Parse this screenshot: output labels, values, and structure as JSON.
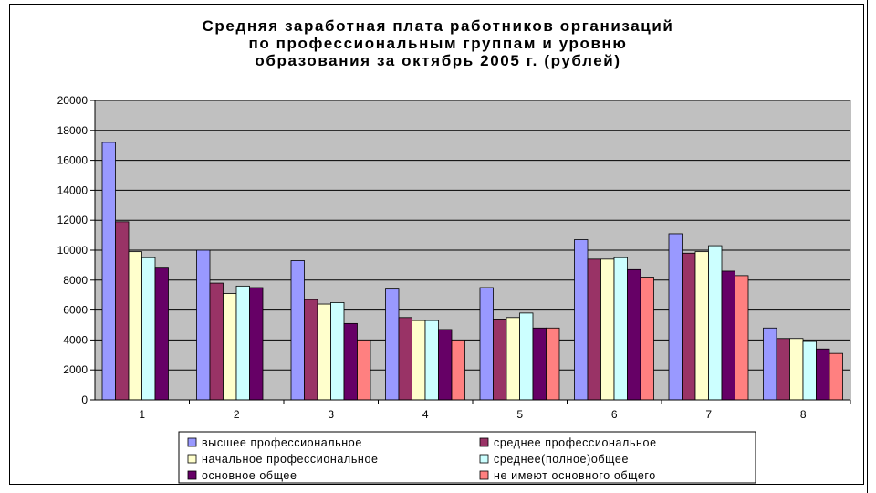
{
  "chart_data": {
    "type": "bar",
    "title_lines": [
      "Средняя заработная плата работников организаций",
      "по профессиональным группам и уровню",
      "образования за октябрь 2005 г. (рублей)"
    ],
    "categories": [
      "1",
      "2",
      "3",
      "4",
      "5",
      "6",
      "7",
      "8"
    ],
    "ylim": [
      0,
      20000
    ],
    "yticks": [
      "0",
      "2000",
      "4000",
      "6000",
      "8000",
      "10000",
      "12000",
      "14000",
      "16000",
      "18000",
      "20000"
    ],
    "grid": true,
    "legend_position": "bottom",
    "plot_background": "#c0c0c0",
    "series": [
      {
        "name": "высшее профессиональное",
        "color": "#9999ff",
        "values": [
          17200,
          10000,
          9300,
          7400,
          7500,
          10700,
          11100,
          4800
        ]
      },
      {
        "name": "среднее профессиональное",
        "color": "#993366",
        "values": [
          11900,
          7800,
          6700,
          5500,
          5400,
          9400,
          9800,
          4100
        ]
      },
      {
        "name": "начальное профессиональное",
        "color": "#ffffcc",
        "values": [
          9900,
          7100,
          6400,
          5300,
          5500,
          9400,
          9900,
          4100
        ]
      },
      {
        "name": "среднее(полное)общее",
        "color": "#ccffff",
        "values": [
          9500,
          7600,
          6500,
          5300,
          5800,
          9500,
          10300,
          3900
        ]
      },
      {
        "name": "основное общее",
        "color": "#660066",
        "values": [
          8800,
          7500,
          5100,
          4700,
          4800,
          8700,
          8600,
          3400
        ]
      },
      {
        "name": "не имеют основного общего",
        "color": "#ff8080",
        "values": [
          null,
          null,
          4000,
          4000,
          4800,
          8200,
          8300,
          3100
        ]
      }
    ]
  }
}
